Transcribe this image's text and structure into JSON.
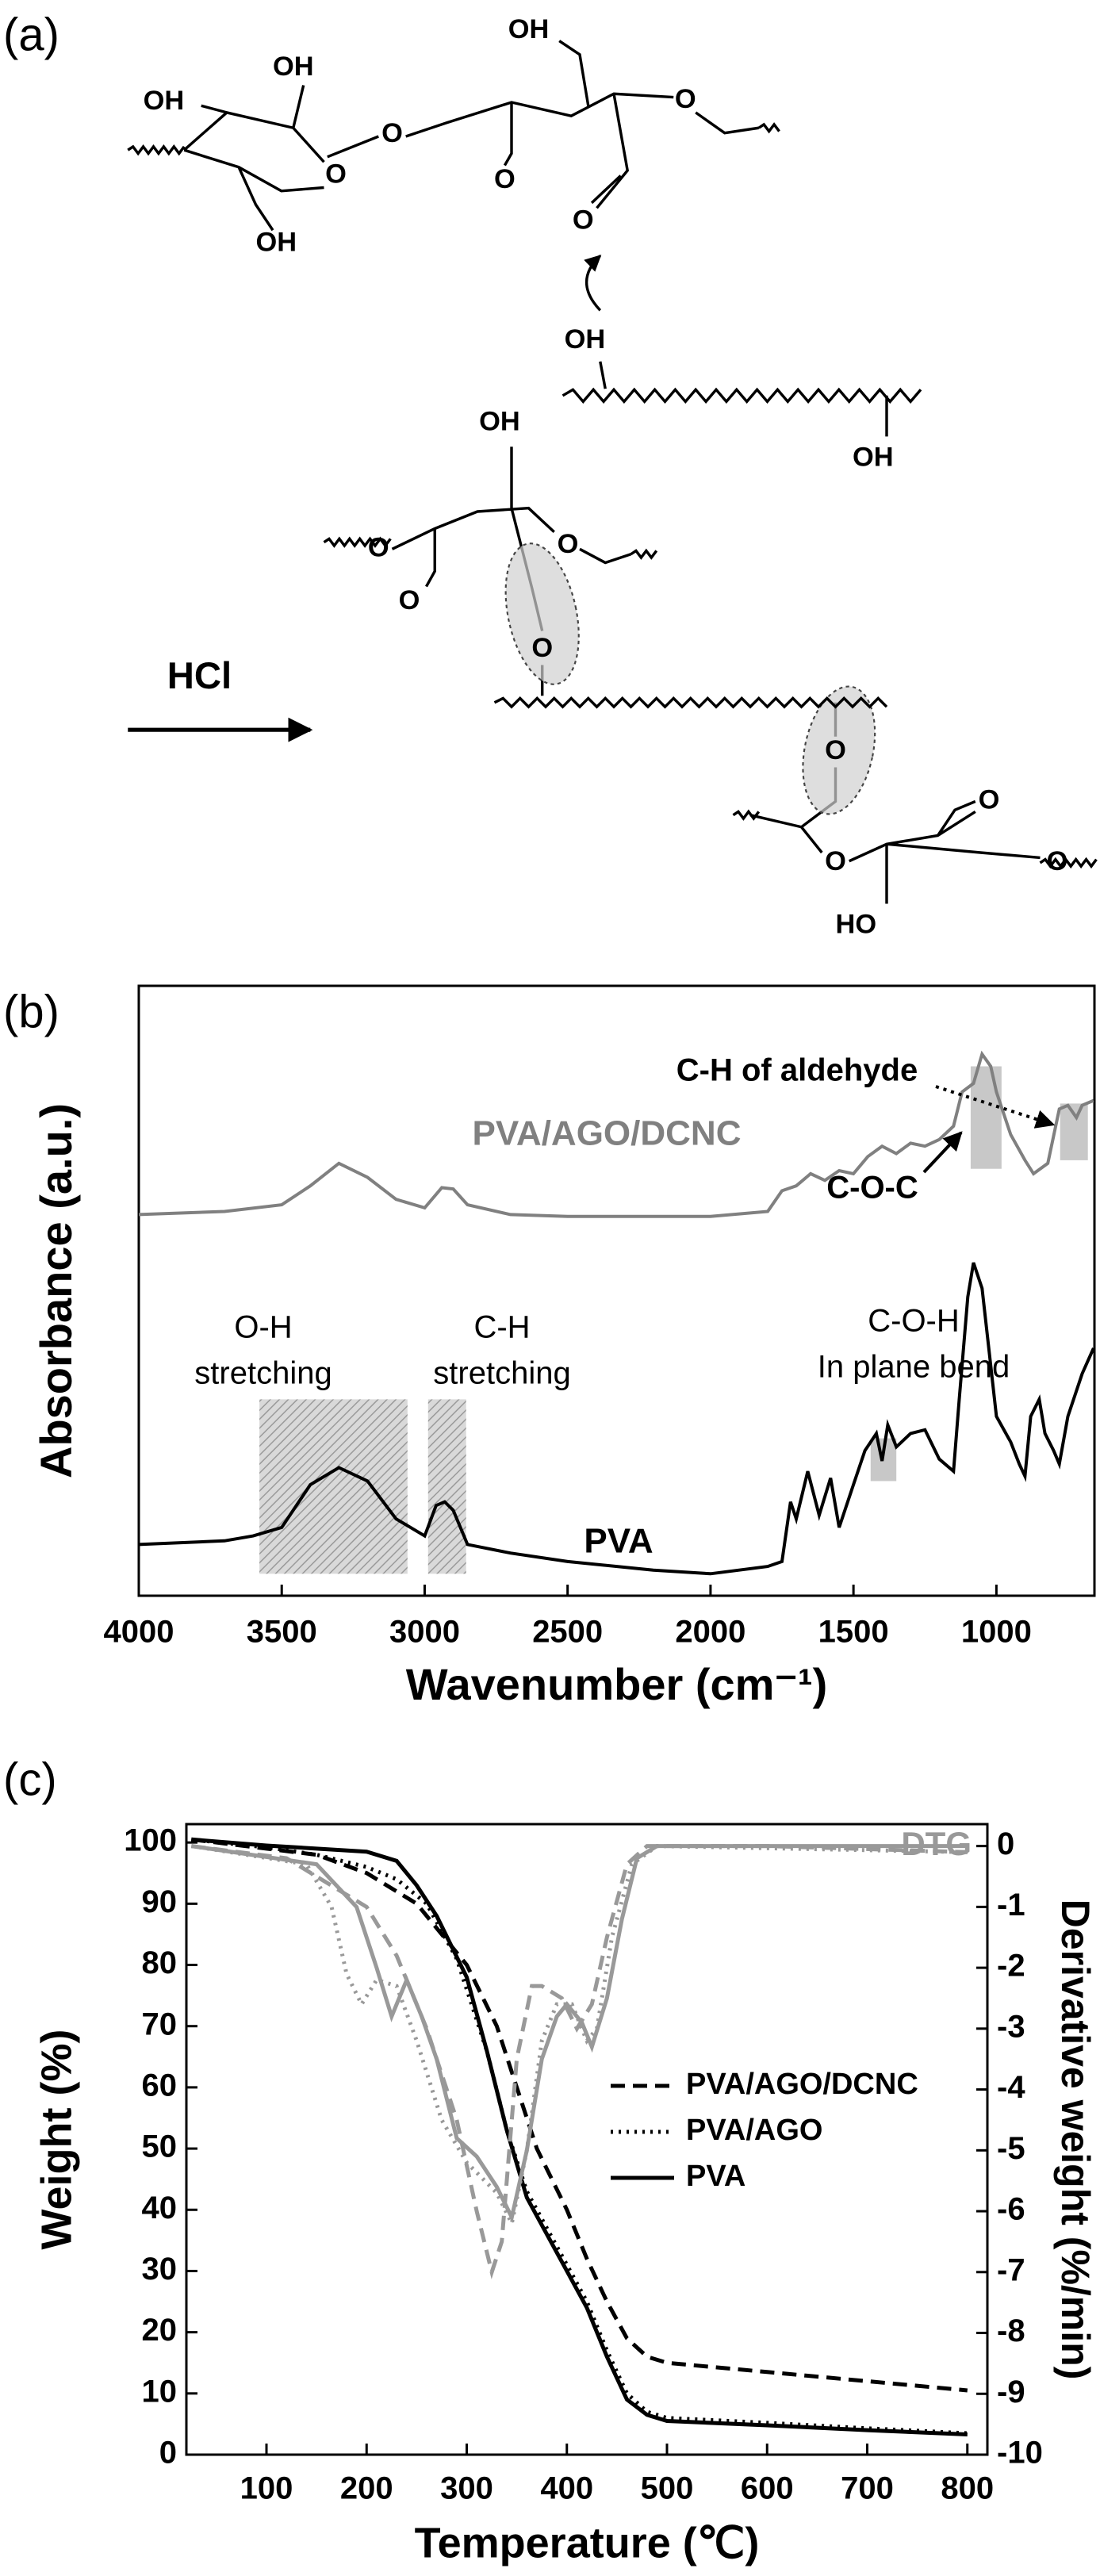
{
  "diagram": {
    "panel_label": "(a)",
    "labels": [
      "OH",
      "OH",
      "OH",
      "O",
      "O",
      "OH",
      "O",
      "O",
      "O",
      "OH",
      "OH",
      "OH",
      "O",
      "O",
      "O",
      "O",
      "O",
      "O",
      "O",
      "O",
      "HO"
    ],
    "reagent": "HCl"
  },
  "chart_data": [
    {
      "type": "line",
      "panel_label": "(b)",
      "x_label": "Wavenumber (cm⁻¹)",
      "y_label": "Absorbance (a.u.)",
      "xlim": [
        4000,
        657
      ],
      "xticks": [
        4000,
        3500,
        3000,
        2500,
        2000,
        1500,
        1000
      ],
      "ylim": [
        0,
        100
      ],
      "series": [
        {
          "name": "PVA/AGO/DCNC",
          "color": "#808080",
          "dash": "solid",
          "x": [
            4000,
            3700,
            3500,
            3400,
            3300,
            3200,
            3100,
            3000,
            2940,
            2900,
            2850,
            2700,
            2500,
            2000,
            1800,
            1750,
            1700,
            1650,
            1600,
            1550,
            1500,
            1450,
            1400,
            1350,
            1300,
            1250,
            1200,
            1150,
            1120,
            1080,
            1050,
            1020,
            1000,
            950,
            900,
            870,
            820,
            780,
            750,
            720,
            700,
            660
          ],
          "values": [
            62.5,
            63.0,
            64.1,
            67.2,
            70.9,
            68.6,
            65.0,
            63.6,
            66.9,
            66.7,
            64.1,
            62.5,
            62.2,
            62.2,
            63.0,
            66.4,
            67.2,
            69.2,
            68.1,
            69.7,
            69.2,
            72.0,
            73.7,
            72.5,
            74.2,
            73.7,
            74.8,
            77.0,
            82.6,
            84.0,
            88.8,
            86.8,
            82.6,
            75.6,
            71.4,
            69.2,
            70.9,
            79.8,
            80.4,
            78.4,
            80.4,
            81.2
          ]
        },
        {
          "name": "PVA",
          "color": "#000000",
          "dash": "solid",
          "x": [
            4000,
            3700,
            3600,
            3500,
            3400,
            3300,
            3200,
            3100,
            3000,
            2960,
            2930,
            2900,
            2850,
            2700,
            2500,
            2200,
            2000,
            1800,
            1750,
            1720,
            1700,
            1660,
            1620,
            1580,
            1550,
            1500,
            1460,
            1420,
            1400,
            1380,
            1350,
            1300,
            1250,
            1200,
            1150,
            1130,
            1100,
            1080,
            1050,
            1000,
            950,
            920,
            900,
            880,
            850,
            830,
            800,
            780,
            750,
            700,
            660
          ],
          "values": [
            8.4,
            9.0,
            9.8,
            11.2,
            18.2,
            21.0,
            18.8,
            12.6,
            9.8,
            14.8,
            15.4,
            14.0,
            8.4,
            7.0,
            5.6,
            4.2,
            3.6,
            4.8,
            5.6,
            15.4,
            12.6,
            20.4,
            13.2,
            19.3,
            11.2,
            18.2,
            23.8,
            26.6,
            22.1,
            28.0,
            24.4,
            26.6,
            27.2,
            22.4,
            20.4,
            32.2,
            49.0,
            54.6,
            50.4,
            29.4,
            25.2,
            21.6,
            19.6,
            29.4,
            32.2,
            26.6,
            23.8,
            21.6,
            29.4,
            36.4,
            40.6
          ]
        }
      ],
      "annotations": [
        "O-H",
        "stretching",
        "C-H",
        "stretching",
        "C-O-H",
        "In plane bend",
        "C-O-C",
        "C-H of aldehyde"
      ],
      "bands": [
        {
          "x": [
            3578,
            3060
          ],
          "y": [
            32.2,
            3.6
          ],
          "style": "hatch"
        },
        {
          "x": [
            2988,
            2855
          ],
          "y": [
            32.2,
            3.6
          ],
          "style": "hatch"
        },
        {
          "x": [
            1440,
            1350
          ],
          "y": [
            25.8,
            18.8
          ],
          "style": "fill"
        },
        {
          "x": [
            1090,
            982
          ],
          "y": [
            86.8,
            70.0
          ],
          "style": "fill"
        },
        {
          "x": [
            777,
            680
          ],
          "y": [
            80.7,
            71.4
          ],
          "style": "fill"
        }
      ]
    },
    {
      "type": "line",
      "panel_label": "(c)",
      "x_label": "Temperature (℃)",
      "y_label": "Weight (%)",
      "y2_label": "Derivative weight (%/min)",
      "xlim": [
        20,
        820
      ],
      "xticks": [
        100,
        200,
        300,
        400,
        500,
        600,
        700,
        800
      ],
      "ylim": [
        0,
        103
      ],
      "yticks": [
        0,
        10,
        20,
        30,
        40,
        50,
        60,
        70,
        80,
        90,
        100
      ],
      "y2lim": [
        -10,
        0.36
      ],
      "y2ticks": [
        0,
        -1,
        -2,
        -3,
        -4,
        -5,
        -6,
        -7,
        -8,
        -9,
        -10
      ],
      "legend": "right",
      "annotation": "DTG",
      "series": [
        {
          "name": "PVA/AGO/DCNC",
          "color": "#000000",
          "dash": "dashed",
          "x": [
            25,
            100,
            150,
            200,
            250,
            300,
            330,
            350,
            370,
            400,
            420,
            440,
            460,
            480,
            500,
            600,
            700,
            800
          ],
          "values": [
            100.5,
            99,
            98,
            95,
            90,
            80,
            70,
            60,
            50,
            40,
            32,
            25,
            19,
            16,
            15,
            13.5,
            12,
            10.5
          ]
        },
        {
          "name": "PVA/AGO",
          "color": "#000000",
          "dash": "dotted",
          "x": [
            25,
            100,
            150,
            200,
            230,
            260,
            290,
            320,
            340,
            360,
            380,
            400,
            420,
            440,
            460,
            480,
            500,
            600,
            700,
            800
          ],
          "values": [
            100.5,
            99.2,
            98,
            96,
            94,
            90,
            81,
            66,
            53,
            43,
            37,
            31,
            25,
            17,
            10,
            7,
            6,
            5.2,
            4.3,
            3.5
          ]
        },
        {
          "name": "PVA",
          "color": "#000000",
          "dash": "solid",
          "x": [
            25,
            100,
            200,
            230,
            250,
            270,
            300,
            320,
            340,
            360,
            380,
            400,
            420,
            440,
            460,
            480,
            500,
            600,
            700,
            800
          ],
          "values": [
            100.5,
            99.5,
            98.5,
            97,
            93,
            88,
            78,
            66,
            53,
            42,
            36,
            30,
            24,
            16,
            9,
            6.5,
            5.5,
            4.8,
            4,
            3.3
          ]
        },
        {
          "color": "#999999",
          "dash": "dashed",
          "axis": "y2",
          "x": [
            25,
            120,
            150,
            200,
            230,
            260,
            290,
            310,
            325,
            335,
            350,
            365,
            375,
            395,
            410,
            425,
            440,
            460,
            480,
            600,
            800
          ],
          "values": [
            0,
            -0.2,
            -0.5,
            -1,
            -1.8,
            -3,
            -4.5,
            -6,
            -7,
            -6.5,
            -3.5,
            -2.3,
            -2.3,
            -2.5,
            -3,
            -2.6,
            -1.5,
            -0.3,
            0,
            0,
            -0.1
          ]
        },
        {
          "color": "#999999",
          "dash": "dotted",
          "axis": "y2",
          "x": [
            25,
            140,
            165,
            180,
            195,
            210,
            230,
            250,
            275,
            300,
            330,
            345,
            360,
            375,
            390,
            405,
            420,
            430,
            445,
            465,
            490,
            800
          ],
          "values": [
            0,
            -0.3,
            -1,
            -2.1,
            -2.6,
            -2.2,
            -2.3,
            -3.2,
            -4.5,
            -5.2,
            -5.7,
            -6.2,
            -5,
            -3.2,
            -2.6,
            -2.6,
            -3.2,
            -3,
            -1.5,
            -0.3,
            0,
            -0.1
          ]
        },
        {
          "color": "#999999",
          "dash": "solid",
          "axis": "y2",
          "x": [
            25,
            150,
            190,
            210,
            225,
            240,
            255,
            270,
            290,
            310,
            330,
            345,
            360,
            375,
            390,
            400,
            415,
            425,
            440,
            455,
            470,
            490,
            800
          ],
          "values": [
            0,
            -0.3,
            -1,
            -2,
            -2.8,
            -2.2,
            -2.8,
            -3.5,
            -4.8,
            -5.1,
            -5.6,
            -6.1,
            -5,
            -3.5,
            -2.8,
            -2.6,
            -2.9,
            -3.3,
            -2.5,
            -1.2,
            -0.2,
            0,
            0
          ]
        }
      ]
    }
  ]
}
